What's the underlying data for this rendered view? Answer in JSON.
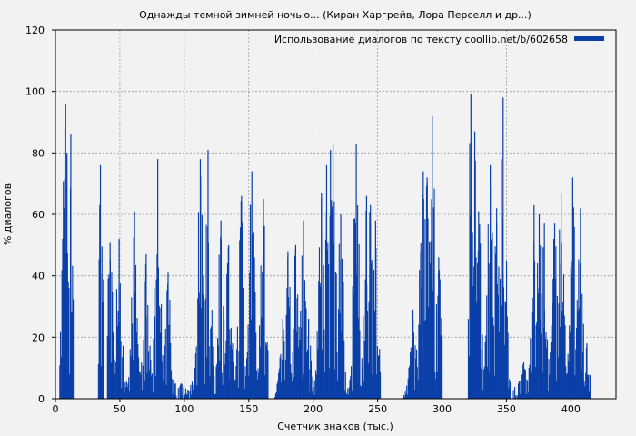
{
  "chart_data": {
    "type": "bar",
    "title": "Однажды темной зимней ночью... (Киран Харгрейв, Лора Перселл и др...)",
    "xlabel": "Счетчик знаков (тыс.)",
    "ylabel": "% диалогов",
    "xlim": [
      0,
      435
    ],
    "ylim": [
      0,
      120
    ],
    "x_ticks": [
      0,
      50,
      100,
      150,
      200,
      250,
      300,
      350,
      400
    ],
    "y_ticks": [
      0,
      20,
      40,
      60,
      80,
      100,
      120
    ],
    "grid": true,
    "legend_position": "top-right",
    "series": [
      {
        "name": "Использование диалогов по тексту coollib.net/b/602658",
        "color": "#0a3fa8",
        "clusters": [
          {
            "x_range": [
              3,
              14
            ],
            "peaks": [
              [
                7,
                88
              ],
              [
                7.5,
                96
              ],
              [
                8.5,
                80
              ],
              [
                11.5,
                86
              ]
            ]
          },
          {
            "x_range": [
              33,
              37
            ],
            "peaks": [
              [
                34.5,
                76
              ],
              [
                34,
                63
              ]
            ]
          },
          {
            "x_range": [
              40,
              100
            ],
            "peaks": [
              [
                42,
                51
              ],
              [
                49,
                52
              ],
              [
                61,
                61
              ],
              [
                70,
                47
              ],
              [
                79,
                78
              ],
              [
                87,
                41
              ]
            ]
          },
          {
            "x_range": [
              98,
              165
            ],
            "peaks": [
              [
                112,
                78
              ],
              [
                118,
                81
              ],
              [
                128,
                58
              ],
              [
                134,
                50
              ],
              [
                144,
                66
              ],
              [
                152,
                74
              ],
              [
                161,
                65
              ]
            ]
          },
          {
            "x_range": [
              170,
              200
            ],
            "peaks": [
              [
                176,
                26
              ],
              [
                180,
                48
              ],
              [
                186,
                50
              ],
              [
                192,
                58
              ],
              [
                196,
                26
              ]
            ]
          },
          {
            "x_range": [
              200,
              252
            ],
            "peaks": [
              [
                206,
                67
              ],
              [
                210,
                76
              ],
              [
                213,
                81
              ],
              [
                215,
                83
              ],
              [
                221,
                60
              ],
              [
                233,
                83
              ],
              [
                241,
                66
              ],
              [
                244,
                63
              ],
              [
                248,
                58
              ]
            ]
          },
          {
            "x_range": [
              270,
              300
            ],
            "peaks": [
              [
                277,
                29
              ],
              [
                283,
                48
              ],
              [
                285,
                74
              ],
              [
                288,
                72
              ],
              [
                292,
                92
              ],
              [
                297,
                46
              ]
            ]
          },
          {
            "x_range": [
              320,
              353
            ],
            "peaks": [
              [
                322,
                99
              ],
              [
                325,
                87
              ],
              [
                328,
                61
              ],
              [
                336,
                44
              ],
              [
                337,
                76
              ],
              [
                342,
                62
              ],
              [
                347,
                98
              ]
            ]
          },
          {
            "x_range": [
              355,
              415
            ],
            "peaks": [
              [
                363,
                12
              ],
              [
                371,
                63
              ],
              [
                375,
                60
              ],
              [
                379,
                57
              ],
              [
                387,
                57
              ],
              [
                392,
                67
              ],
              [
                401,
                72
              ],
              [
                407,
                62
              ],
              [
                412,
                18
              ]
            ]
          }
        ]
      }
    ]
  }
}
